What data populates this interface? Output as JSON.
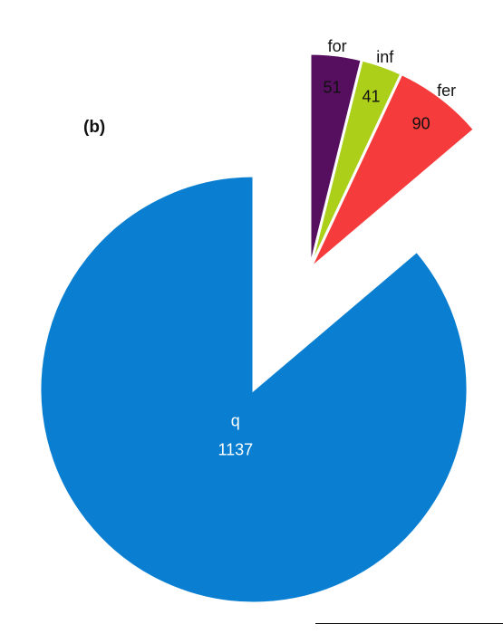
{
  "panel_label": "(b)",
  "chart_data": {
    "type": "pie",
    "title": "",
    "slices": [
      {
        "label": "q",
        "value": 1137,
        "color": "#0a7fd1",
        "exploded": false,
        "label_position": "inside"
      },
      {
        "label": "for",
        "value": 51,
        "color": "#560f5f",
        "exploded": true,
        "label_position": "outer-name-inner-value"
      },
      {
        "label": "inf",
        "value": 41,
        "color": "#acd01a",
        "exploded": true,
        "label_position": "outer-name-inner-value"
      },
      {
        "label": "fer",
        "value": 90,
        "color": "#f53b3c",
        "exploded": true,
        "label_position": "outer-name-inner-value"
      }
    ],
    "legend": "none",
    "grid": false
  }
}
